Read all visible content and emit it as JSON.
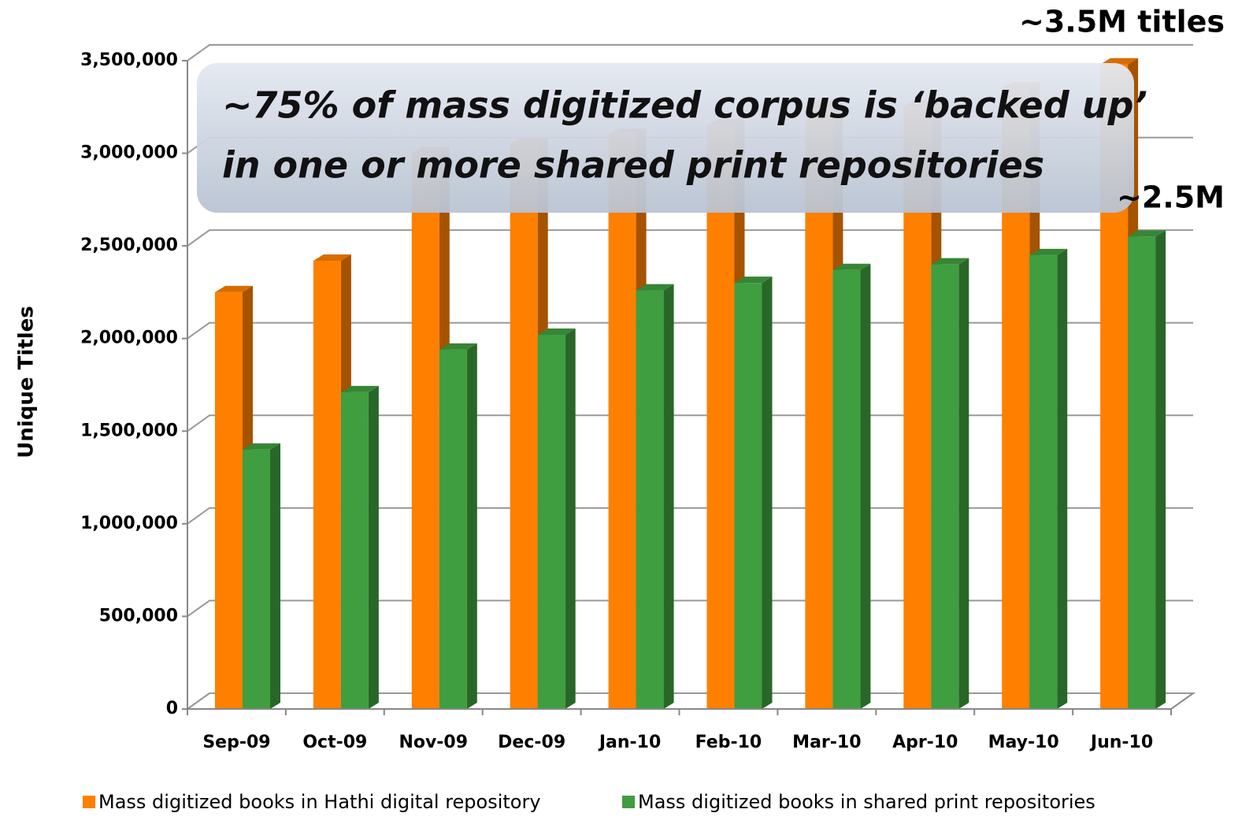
{
  "chart_data": {
    "type": "bar3d",
    "y_label": "Unique Titles",
    "categories": [
      "Sep-09",
      "Oct-09",
      "Nov-09",
      "Dec-09",
      "Jan-10",
      "Feb-10",
      "Mar-10",
      "Apr-10",
      "May-10",
      "Jun-10"
    ],
    "series": [
      {
        "name": "Mass digitized books in Hathi digital repository",
        "color": "#ff7f00",
        "values": [
          2250000,
          2420000,
          3000000,
          3050000,
          3100000,
          3150000,
          3250000,
          3250000,
          3350000,
          3480000
        ]
      },
      {
        "name": "Mass digitized books in shared print repositories",
        "color": "#3f9e3f",
        "values": [
          1400000,
          1710000,
          1940000,
          2020000,
          2260000,
          2300000,
          2370000,
          2400000,
          2450000,
          2550000
        ]
      }
    ],
    "ylim": [
      0,
      3500000
    ],
    "yticks": [
      0,
      {
        "value": 500000,
        "label": "500,000"
      },
      {
        "value": 1000000,
        "label": "1,000,000"
      },
      {
        "value": 1500000,
        "label": "1,500,000"
      },
      {
        "value": 2000000,
        "label": "2,000,000"
      },
      {
        "value": 2500000,
        "label": "2,500,000"
      },
      {
        "value": 3000000,
        "label": "3,000,000"
      },
      {
        "value": 3500000,
        "label": "3,500,000"
      }
    ],
    "grid": true,
    "legend": "bottom",
    "annotations": [
      "~75% of mass digitized corpus is ‘backed up’",
      "in one or more shared print repositories",
      "~3.5M titles",
      "~2.5M"
    ]
  }
}
